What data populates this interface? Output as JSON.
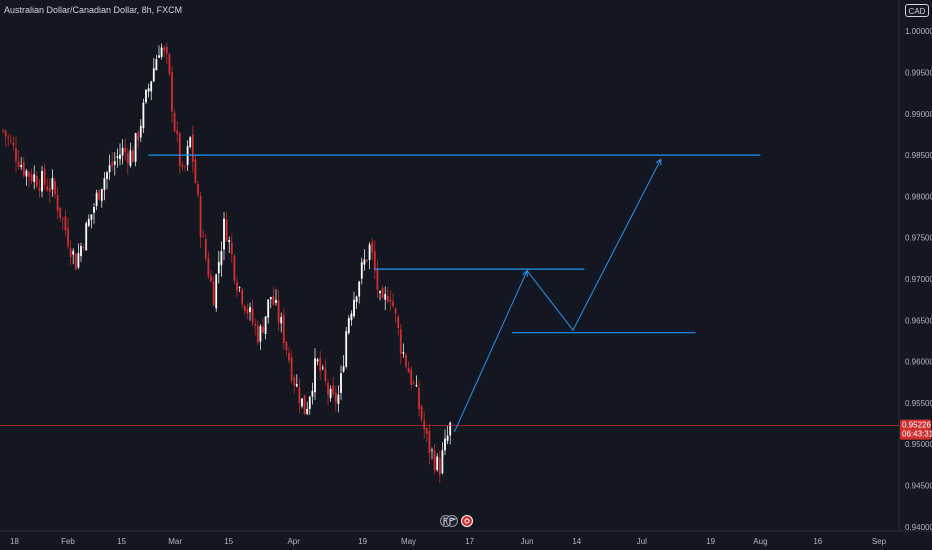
{
  "header": {
    "title": "Australian Dollar/Canadian Dollar, 8h, FXCM",
    "currency": "CAD"
  },
  "price_label": {
    "price": "0.95226",
    "countdown": "06:43:31"
  },
  "colors": {
    "background": "#131722",
    "up": "#ffffff",
    "down": "#d32f2f",
    "drawing": "#2196f3",
    "price_line": "#d32f2f",
    "text": "#b2b5be"
  },
  "icons": [
    "flag-icon",
    "earnings-icon"
  ],
  "chart_data": {
    "type": "candlestick",
    "title": "Australian Dollar/Canadian Dollar, 8h, FXCM",
    "y_ticks": [
      "1.00000",
      "0.99500",
      "0.99000",
      "0.98500",
      "0.98000",
      "0.97500",
      "0.97000",
      "0.96500",
      "0.96000",
      "0.95500",
      "0.95000",
      "0.94500",
      "0.94000"
    ],
    "x_ticks": [
      "18",
      "Feb",
      "15",
      "Mar",
      "15",
      "Apr",
      "19",
      "May",
      "17",
      "Jun",
      "14",
      "Jul",
      "19",
      "Aug",
      "16",
      "Sep"
    ],
    "ylim": [
      0.9395,
      1.0028
    ],
    "last_price": 0.95226,
    "horizontal_levels": [
      {
        "price": 0.985,
        "from": "~Feb 22",
        "to": "~Aug"
      },
      {
        "price": 0.9712,
        "from": "~Apr 22",
        "to": "~Jun 16"
      },
      {
        "price": 0.9635,
        "from": "~May 28",
        "to": "~Jul 15"
      }
    ],
    "projection_path": [
      {
        "date": "~May 13",
        "price": 0.9515
      },
      {
        "date": "~Jun 1",
        "price": 0.971
      },
      {
        "date": "~Jun 13",
        "price": 0.9638
      },
      {
        "date": "~Jul 6",
        "price": 0.9845
      }
    ],
    "price_path_keypoints": [
      {
        "date": "~Jan 15",
        "price": 0.988
      },
      {
        "date": "~Jan 21",
        "price": 0.983
      },
      {
        "date": "~Jan 28",
        "price": 0.981
      },
      {
        "date": "~Feb 3",
        "price": 0.972
      },
      {
        "date": "~Feb 10",
        "price": 0.982
      },
      {
        "date": "~Feb 15",
        "price": 0.9855
      },
      {
        "date": "~Feb 18",
        "price": 0.985
      },
      {
        "date": "~Feb 22",
        "price": 0.993
      },
      {
        "date": "~Feb 25",
        "price": 0.9985
      },
      {
        "date": "~Feb 27",
        "price": 0.996
      },
      {
        "date": "~Mar 1",
        "price": 0.988
      },
      {
        "date": "~Mar 3",
        "price": 0.982
      },
      {
        "date": "~Mar 5",
        "price": 0.987
      },
      {
        "date": "~Mar 8",
        "price": 0.975
      },
      {
        "date": "~Mar 11",
        "price": 0.968
      },
      {
        "date": "~Mar 14",
        "price": 0.977
      },
      {
        "date": "~Mar 17",
        "price": 0.97
      },
      {
        "date": "~Mar 21",
        "price": 0.965
      },
      {
        "date": "~Mar 23",
        "price": 0.963
      },
      {
        "date": "~Mar 26",
        "price": 0.968
      },
      {
        "date": "~Mar 29",
        "price": 0.964
      },
      {
        "date": "~Apr 1",
        "price": 0.958
      },
      {
        "date": "~Apr 4",
        "price": 0.954
      },
      {
        "date": "~Apr 7",
        "price": 0.96
      },
      {
        "date": "~Apr 11",
        "price": 0.955
      },
      {
        "date": "~Apr 13",
        "price": 0.956
      },
      {
        "date": "~Apr 15",
        "price": 0.965
      },
      {
        "date": "~Apr 18",
        "price": 0.97
      },
      {
        "date": "~Apr 21",
        "price": 0.974
      },
      {
        "date": "~Apr 24",
        "price": 0.966
      },
      {
        "date": "~Apr 26",
        "price": 0.969
      },
      {
        "date": "~Apr 29",
        "price": 0.962
      },
      {
        "date": "~May 3",
        "price": 0.956
      },
      {
        "date": "~May 6",
        "price": 0.95
      },
      {
        "date": "~May 9",
        "price": 0.947
      },
      {
        "date": "~May 12",
        "price": 0.9522
      }
    ]
  }
}
